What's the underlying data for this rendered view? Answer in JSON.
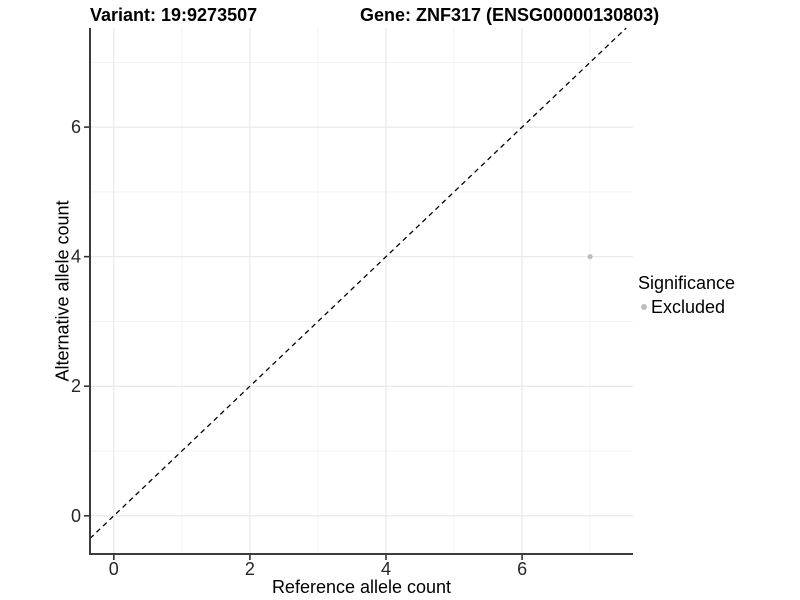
{
  "chart_data": {
    "type": "scatter",
    "title_left": "Variant: 19:9273507",
    "title_right": "Gene: ZNF317 (ENSG00000130803)",
    "xlabel": "Reference allele count",
    "ylabel": "Alternative allele count",
    "xlim": [
      -0.35,
      7.63
    ],
    "ylim": [
      -0.59,
      7.53
    ],
    "xticks": [
      0,
      2,
      4,
      6
    ],
    "yticks": [
      0,
      2,
      4,
      6
    ],
    "minor_xticks": [
      1,
      3,
      5,
      7
    ],
    "minor_yticks": [
      1,
      3,
      5,
      7
    ],
    "grid": "on",
    "identity_line": {
      "style": "dashed",
      "equation": "y = x"
    },
    "series": [
      {
        "name": "Excluded",
        "color": "#bdbdbd",
        "points": [
          {
            "x": 7,
            "y": 4
          }
        ]
      }
    ],
    "legend": {
      "title": "Significance",
      "position": "right",
      "items": [
        {
          "label": "Excluded",
          "color": "#bdbdbd"
        }
      ]
    }
  },
  "colors": {
    "point": "#bdbdbd",
    "grid_major": "#e8e8e8",
    "grid_minor": "#f3f3f3",
    "axis_line": "#3c3c3c",
    "tick_mark": "#333333",
    "tick_label": "#262626",
    "identity_line": "#000000",
    "background": "#ffffff"
  }
}
